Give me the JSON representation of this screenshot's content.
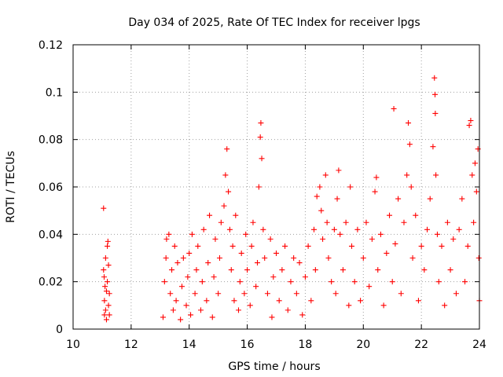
{
  "chart_data": {
    "type": "scatter",
    "title": "Day 034 of 2025, Rate Of TEC Index for receiver lpgs",
    "xlabel": "GPS time / hours",
    "ylabel": "ROTI / TECUs",
    "xlim": [
      10,
      24
    ],
    "ylim": [
      0,
      0.12
    ],
    "grid": true,
    "marker": "+",
    "color": "#ff0000",
    "x_ticks": [
      10,
      12,
      14,
      16,
      18,
      20,
      22,
      24
    ],
    "x_tick_labels": [
      "10",
      "12",
      "14",
      "16",
      "18",
      "20",
      "22",
      "24"
    ],
    "y_ticks": [
      0,
      0.02,
      0.04,
      0.06,
      0.08,
      0.1,
      0.12
    ],
    "y_tick_labels": [
      "0",
      "0.02",
      "0.04",
      "0.06",
      "0.08",
      "0.1",
      "0.12"
    ],
    "series": [
      {
        "name": "ROTI",
        "points": [
          [
            11.05,
            0.051
          ],
          [
            11.05,
            0.025
          ],
          [
            11.07,
            0.022
          ],
          [
            11.08,
            0.012
          ],
          [
            11.08,
            0.006
          ],
          [
            11.1,
            0.018
          ],
          [
            11.12,
            0.008
          ],
          [
            11.12,
            0.03
          ],
          [
            11.15,
            0.004
          ],
          [
            11.15,
            0.016
          ],
          [
            11.18,
            0.035
          ],
          [
            11.18,
            0.02
          ],
          [
            11.2,
            0.037
          ],
          [
            11.22,
            0.01
          ],
          [
            11.22,
            0.027
          ],
          [
            11.25,
            0.015
          ],
          [
            11.25,
            0.006
          ],
          [
            13.1,
            0.005
          ],
          [
            13.15,
            0.02
          ],
          [
            13.2,
            0.03
          ],
          [
            13.22,
            0.038
          ],
          [
            13.3,
            0.04
          ],
          [
            13.35,
            0.015
          ],
          [
            13.4,
            0.025
          ],
          [
            13.45,
            0.008
          ],
          [
            13.5,
            0.035
          ],
          [
            13.55,
            0.012
          ],
          [
            13.6,
            0.028
          ],
          [
            13.7,
            0.004
          ],
          [
            13.75,
            0.018
          ],
          [
            13.8,
            0.03
          ],
          [
            13.9,
            0.01
          ],
          [
            13.95,
            0.022
          ],
          [
            14.0,
            0.032
          ],
          [
            14.05,
            0.006
          ],
          [
            14.1,
            0.04
          ],
          [
            14.2,
            0.015
          ],
          [
            14.25,
            0.025
          ],
          [
            14.3,
            0.035
          ],
          [
            14.4,
            0.008
          ],
          [
            14.45,
            0.02
          ],
          [
            14.5,
            0.042
          ],
          [
            14.6,
            0.012
          ],
          [
            14.65,
            0.028
          ],
          [
            14.7,
            0.048
          ],
          [
            14.8,
            0.005
          ],
          [
            14.85,
            0.022
          ],
          [
            14.9,
            0.038
          ],
          [
            15.0,
            0.015
          ],
          [
            15.05,
            0.03
          ],
          [
            15.1,
            0.045
          ],
          [
            15.2,
            0.052
          ],
          [
            15.25,
            0.065
          ],
          [
            15.3,
            0.076
          ],
          [
            15.35,
            0.058
          ],
          [
            15.4,
            0.042
          ],
          [
            15.45,
            0.025
          ],
          [
            15.5,
            0.035
          ],
          [
            15.55,
            0.012
          ],
          [
            15.6,
            0.048
          ],
          [
            15.7,
            0.008
          ],
          [
            15.75,
            0.02
          ],
          [
            15.8,
            0.032
          ],
          [
            15.9,
            0.015
          ],
          [
            15.95,
            0.04
          ],
          [
            16.0,
            0.025
          ],
          [
            16.1,
            0.01
          ],
          [
            16.15,
            0.035
          ],
          [
            16.2,
            0.045
          ],
          [
            16.3,
            0.018
          ],
          [
            16.35,
            0.028
          ],
          [
            16.4,
            0.06
          ],
          [
            16.45,
            0.081
          ],
          [
            16.47,
            0.087
          ],
          [
            16.5,
            0.072
          ],
          [
            16.55,
            0.042
          ],
          [
            16.6,
            0.03
          ],
          [
            16.7,
            0.015
          ],
          [
            16.8,
            0.038
          ],
          [
            16.85,
            0.005
          ],
          [
            16.9,
            0.022
          ],
          [
            17.0,
            0.032
          ],
          [
            17.1,
            0.012
          ],
          [
            17.2,
            0.025
          ],
          [
            17.3,
            0.035
          ],
          [
            17.4,
            0.008
          ],
          [
            17.5,
            0.02
          ],
          [
            17.6,
            0.03
          ],
          [
            17.7,
            0.015
          ],
          [
            17.8,
            0.028
          ],
          [
            17.9,
            0.006
          ],
          [
            18.0,
            0.022
          ],
          [
            18.1,
            0.035
          ],
          [
            18.2,
            0.012
          ],
          [
            18.3,
            0.042
          ],
          [
            18.35,
            0.025
          ],
          [
            18.4,
            0.056
          ],
          [
            18.5,
            0.06
          ],
          [
            18.55,
            0.05
          ],
          [
            18.6,
            0.038
          ],
          [
            18.7,
            0.065
          ],
          [
            18.75,
            0.045
          ],
          [
            18.8,
            0.03
          ],
          [
            18.9,
            0.02
          ],
          [
            19.0,
            0.042
          ],
          [
            19.05,
            0.015
          ],
          [
            19.1,
            0.055
          ],
          [
            19.15,
            0.067
          ],
          [
            19.2,
            0.04
          ],
          [
            19.3,
            0.025
          ],
          [
            19.4,
            0.045
          ],
          [
            19.5,
            0.01
          ],
          [
            19.55,
            0.06
          ],
          [
            19.6,
            0.035
          ],
          [
            19.7,
            0.02
          ],
          [
            19.8,
            0.042
          ],
          [
            19.9,
            0.012
          ],
          [
            20.0,
            0.03
          ],
          [
            20.1,
            0.045
          ],
          [
            20.2,
            0.018
          ],
          [
            20.3,
            0.038
          ],
          [
            20.4,
            0.058
          ],
          [
            20.45,
            0.064
          ],
          [
            20.5,
            0.025
          ],
          [
            20.6,
            0.04
          ],
          [
            20.7,
            0.01
          ],
          [
            20.8,
            0.032
          ],
          [
            20.9,
            0.048
          ],
          [
            21.0,
            0.02
          ],
          [
            21.05,
            0.093
          ],
          [
            21.1,
            0.036
          ],
          [
            21.2,
            0.055
          ],
          [
            21.3,
            0.015
          ],
          [
            21.4,
            0.045
          ],
          [
            21.5,
            0.065
          ],
          [
            21.55,
            0.087
          ],
          [
            21.6,
            0.078
          ],
          [
            21.65,
            0.06
          ],
          [
            21.7,
            0.03
          ],
          [
            21.8,
            0.048
          ],
          [
            21.9,
            0.012
          ],
          [
            22.0,
            0.035
          ],
          [
            22.1,
            0.025
          ],
          [
            22.2,
            0.042
          ],
          [
            22.3,
            0.055
          ],
          [
            22.4,
            0.077
          ],
          [
            22.45,
            0.106
          ],
          [
            22.47,
            0.099
          ],
          [
            22.48,
            0.091
          ],
          [
            22.5,
            0.065
          ],
          [
            22.55,
            0.04
          ],
          [
            22.6,
            0.02
          ],
          [
            22.7,
            0.035
          ],
          [
            22.8,
            0.01
          ],
          [
            22.9,
            0.045
          ],
          [
            23.0,
            0.025
          ],
          [
            23.1,
            0.038
          ],
          [
            23.2,
            0.015
          ],
          [
            23.3,
            0.042
          ],
          [
            23.4,
            0.055
          ],
          [
            23.5,
            0.02
          ],
          [
            23.6,
            0.035
          ],
          [
            23.65,
            0.086
          ],
          [
            23.7,
            0.088
          ],
          [
            23.75,
            0.065
          ],
          [
            23.8,
            0.045
          ],
          [
            23.85,
            0.07
          ],
          [
            23.9,
            0.058
          ],
          [
            23.95,
            0.076
          ],
          [
            23.98,
            0.03
          ],
          [
            24.0,
            0.012
          ]
        ]
      }
    ]
  }
}
